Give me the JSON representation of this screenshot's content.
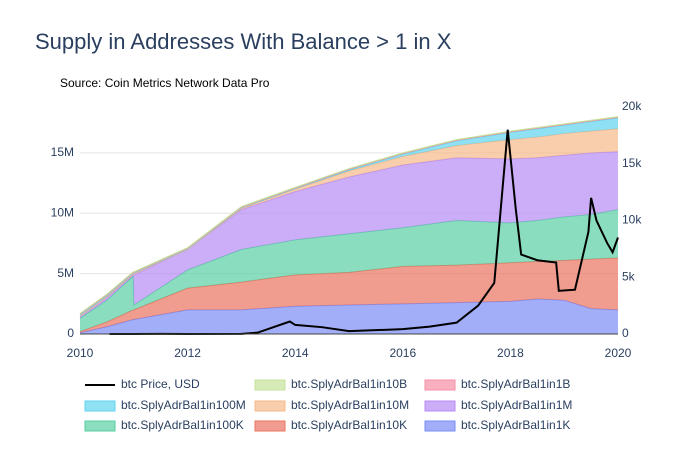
{
  "chart_data": {
    "type": "area",
    "title": "Supply in Addresses With Balance > 1 in X",
    "subtitle": "Source: Coin Metrics Network Data Pro",
    "x": [
      2010,
      2010.5,
      2010.99,
      2011,
      2012,
      2013,
      2014,
      2015,
      2016,
      2017,
      2018,
      2018.5,
      2019,
      2019.5,
      2020
    ],
    "xlim": [
      2010,
      2020
    ],
    "xticks": [
      2010,
      2012,
      2014,
      2016,
      2018,
      2020
    ],
    "ylim": [
      0,
      18800000
    ],
    "yticks": [
      0,
      {
        "value": 5000000,
        "label": "5M"
      },
      {
        "value": 10000000,
        "label": "10M"
      },
      {
        "value": 15000000,
        "label": "15M"
      }
    ],
    "y2lim": [
      0,
      20000
    ],
    "y2ticks": [
      0,
      {
        "value": 5000,
        "label": "5k"
      },
      {
        "value": 10000,
        "label": "10k"
      },
      {
        "value": 15000,
        "label": "15k"
      },
      {
        "value": 20000,
        "label": "20k"
      }
    ],
    "grid": true,
    "stacked": true,
    "series": [
      {
        "name": "btc Price, USD",
        "type": "line",
        "axis": "y2",
        "color": "#000000",
        "x": [
          2010.55,
          2011,
          2011.5,
          2012,
          2013,
          2013.3,
          2013.9,
          2014,
          2014.5,
          2015,
          2016,
          2016.5,
          2017,
          2017.4,
          2017.7,
          2017.95,
          2018.1,
          2018.2,
          2018.5,
          2018.85,
          2018.9,
          2019.2,
          2019.45,
          2019.5,
          2019.6,
          2019.8,
          2019.9,
          2020
        ],
        "values": [
          0.1,
          0.3,
          15,
          5,
          13,
          120,
          1100,
          800,
          600,
          250,
          430,
          650,
          1000,
          2500,
          4500,
          18000,
          11000,
          7000,
          6500,
          6300,
          3800,
          3900,
          9000,
          12000,
          10000,
          8000,
          7200,
          8500
        ]
      },
      {
        "name": "btc.SplyAdrBal1in10B",
        "color": "#c5e39a",
        "values": [
          50000,
          50000,
          50000,
          50000,
          50000,
          50000,
          50000,
          50000,
          50000,
          50000,
          50000,
          50000,
          50000,
          50000,
          50000
        ]
      },
      {
        "name": "btc.SplyAdrBal1in1B",
        "color": "#f58fa5",
        "values": [
          50000,
          50000,
          50000,
          50000,
          50000,
          50000,
          50000,
          50000,
          50000,
          50000,
          50000,
          50000,
          50000,
          50000,
          50000
        ]
      },
      {
        "name": "btc.SplyAdrBal1in100M",
        "color": "#5fd3ee",
        "values": [
          100000,
          100000,
          50000,
          50000,
          50000,
          50000,
          50000,
          100000,
          200000,
          400000,
          600000,
          700000,
          700000,
          800000,
          900000
        ]
      },
      {
        "name": "btc.SplyAdrBal1in10M",
        "color": "#f6b98a",
        "values": [
          100000,
          100000,
          100000,
          100000,
          0,
          100000,
          200000,
          500000,
          700000,
          1000000,
          1600000,
          1700000,
          1800000,
          1800000,
          1900000
        ]
      },
      {
        "name": "btc.SplyAdrBal1in1M",
        "color": "#b58cf4",
        "values": [
          100000,
          200000,
          100000,
          2500000,
          1700000,
          3300000,
          4000000,
          4700000,
          5200000,
          5200000,
          5300000,
          5200000,
          5100000,
          5100000,
          4800000
        ]
      },
      {
        "name": "btc.SplyAdrBal1in100K",
        "color": "#58cfa2",
        "values": [
          1100000,
          1800000,
          2800000,
          400000,
          1500000,
          2700000,
          2900000,
          3200000,
          3200000,
          3700000,
          3300000,
          3400000,
          3600000,
          3700000,
          4000000
        ]
      },
      {
        "name": "btc.SplyAdrBal1in10K",
        "color": "#e9735f",
        "values": [
          100000,
          400000,
          800000,
          800000,
          1800000,
          2300000,
          2600000,
          2700000,
          3100000,
          3100000,
          3200000,
          3100000,
          3300000,
          4100000,
          4300000
        ]
      },
      {
        "name": "btc.SplyAdrBal1in1K",
        "color": "#7b8cf5",
        "values": [
          100000,
          600000,
          1200000,
          1200000,
          2000000,
          2000000,
          2300000,
          2400000,
          2500000,
          2600000,
          2700000,
          2900000,
          2800000,
          2100000,
          2000000
        ]
      }
    ]
  }
}
